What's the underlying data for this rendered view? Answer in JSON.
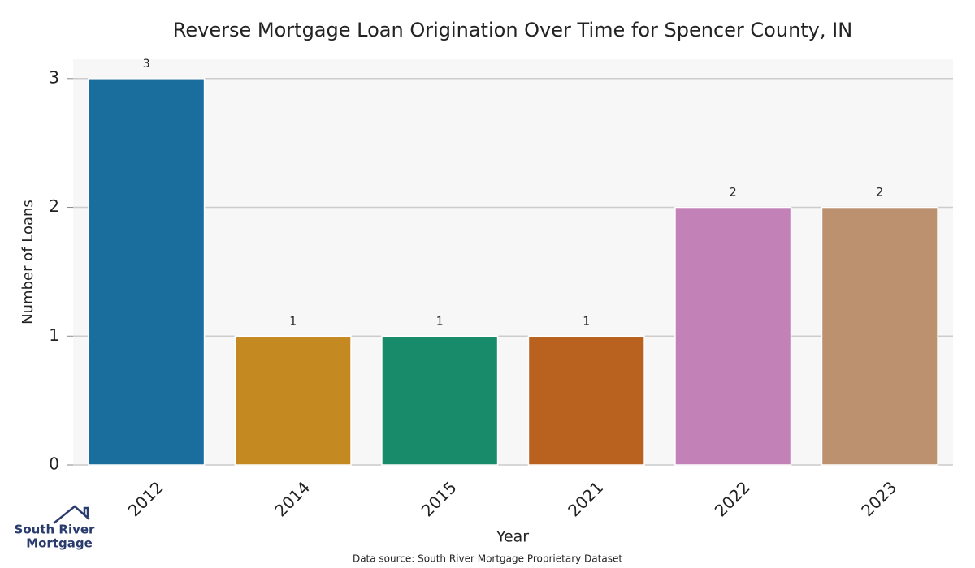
{
  "chart_data": {
    "type": "bar",
    "title": "Reverse Mortgage Loan Origination Over Time for Spencer County, IN",
    "x_label": "Year",
    "y_label": "Number of Loans",
    "categories": [
      "2012",
      "2014",
      "2015",
      "2021",
      "2022",
      "2023"
    ],
    "values": [
      3,
      1,
      1,
      1,
      2,
      2
    ],
    "colors": [
      "#1a6e9e",
      "#c48a21",
      "#178b6a",
      "#b9611e",
      "#c282b7",
      "#bb916f"
    ],
    "ylim": [
      0,
      3.15
    ],
    "yticks": [
      0,
      1,
      2,
      3
    ],
    "grid": true
  },
  "logo": [
    "South River",
    "Mortgage"
  ],
  "source": "Data source: South River Mortgage Proprietary Dataset"
}
